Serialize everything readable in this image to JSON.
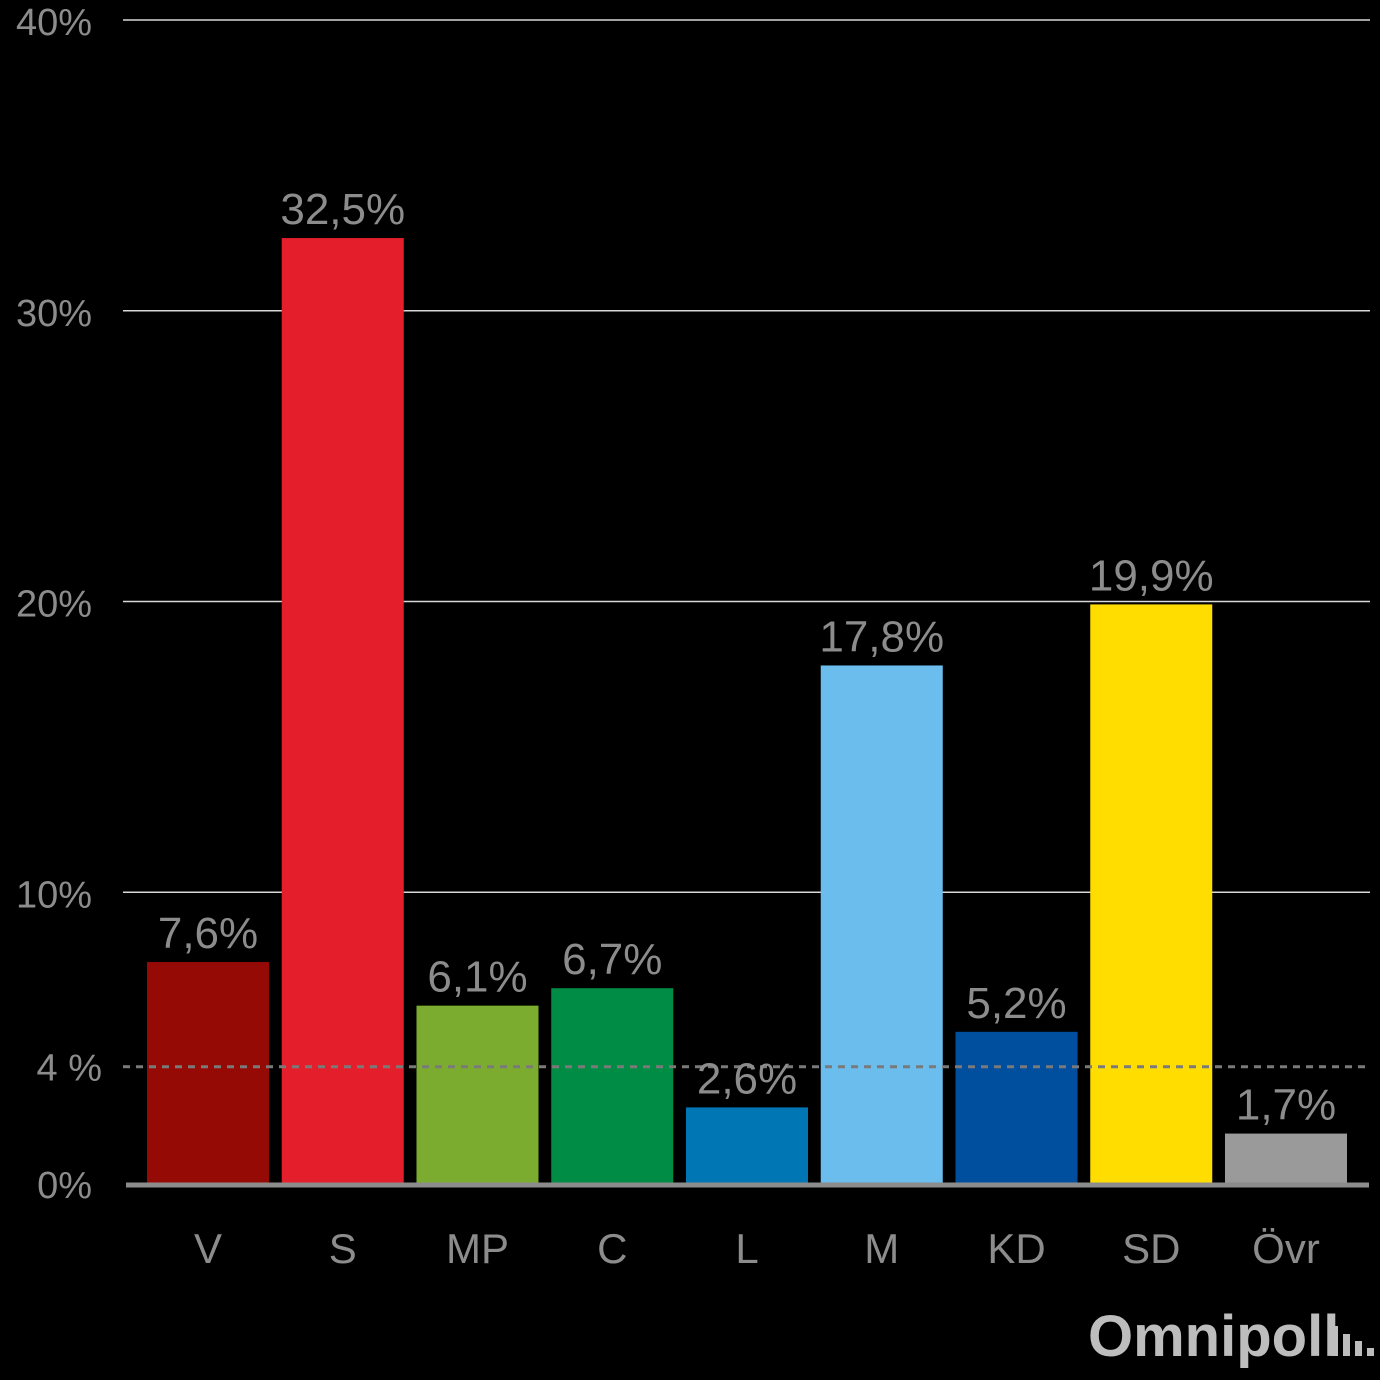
{
  "chart_data": {
    "type": "bar",
    "categories": [
      "V",
      "S",
      "MP",
      "C",
      "L",
      "M",
      "KD",
      "SD",
      "Övr"
    ],
    "values": [
      7.6,
      32.5,
      6.1,
      6.7,
      2.6,
      17.8,
      5.2,
      19.9,
      1.7
    ],
    "value_labels": [
      "7,6%",
      "32,5%",
      "6,1%",
      "6,7%",
      "2,6%",
      "17,8%",
      "5,2%",
      "19,9%",
      "1,7%"
    ],
    "colors": [
      "#960a06",
      "#e41e2b",
      "#7bac2f",
      "#008c45",
      "#0076b4",
      "#6abdec",
      "#004f9f",
      "#ffdd00",
      "#9a9a9a"
    ],
    "ylim": [
      0,
      40
    ],
    "yticks": [
      0,
      10,
      20,
      30,
      40
    ],
    "ytick_labels": [
      "0%",
      "10%",
      "20%",
      "30%",
      "40%"
    ],
    "threshold": {
      "value": 4,
      "label": "4 %"
    },
    "grid": true
  },
  "branding": {
    "logo": "Omnipoll"
  }
}
